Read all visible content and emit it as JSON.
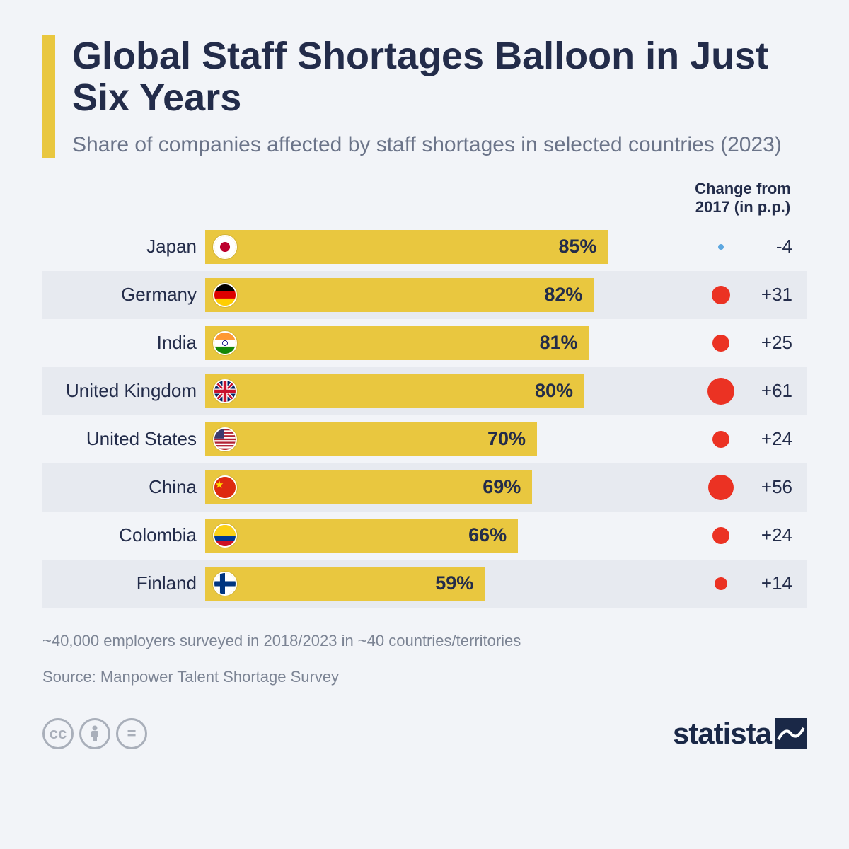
{
  "title": "Global Staff Shortages Balloon in Just Six Years",
  "subtitle": "Share of companies affected by staff shortages in selected countries (2023)",
  "change_header": "Change from 2017 (in p.p.)",
  "accent_color": "#e9c73f",
  "background_color": "#f2f4f8",
  "alt_row_color": "#e7eaf0",
  "positive_dot_color": "#eb3223",
  "negative_dot_color": "#5da7e0",
  "max_value": 100,
  "rows": [
    {
      "country": "Japan",
      "value": 85,
      "change": -4,
      "dot_size": 8,
      "flag": "japan"
    },
    {
      "country": "Germany",
      "value": 82,
      "change": 31,
      "dot_size": 26,
      "flag": "germany"
    },
    {
      "country": "India",
      "value": 81,
      "change": 25,
      "dot_size": 24,
      "flag": "india"
    },
    {
      "country": "United Kingdom",
      "value": 80,
      "change": 61,
      "dot_size": 38,
      "flag": "uk"
    },
    {
      "country": "United States",
      "value": 70,
      "change": 24,
      "dot_size": 24,
      "flag": "usa"
    },
    {
      "country": "China",
      "value": 69,
      "change": 56,
      "dot_size": 36,
      "flag": "china"
    },
    {
      "country": "Colombia",
      "value": 66,
      "change": 24,
      "dot_size": 24,
      "flag": "colombia"
    },
    {
      "country": "Finland",
      "value": 59,
      "change": 14,
      "dot_size": 18,
      "flag": "finland"
    }
  ],
  "footnote1": "~40,000 employers surveyed in 2018/2023 in ~40 countries/territories",
  "footnote2": "Source: Manpower Talent Shortage Survey",
  "logo_text": "statista"
}
